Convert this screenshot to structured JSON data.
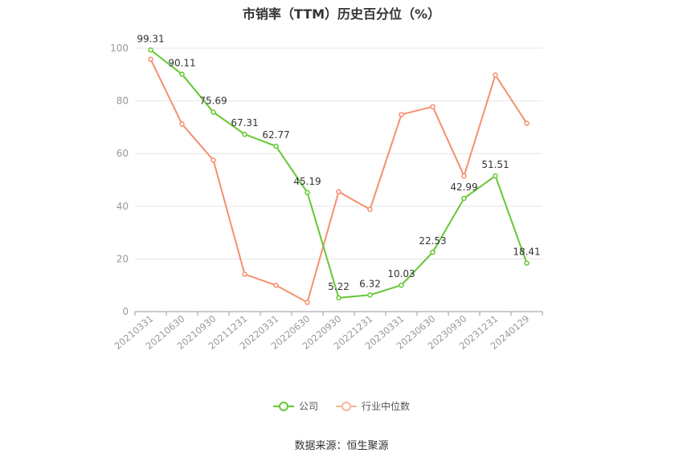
{
  "chart_data": {
    "type": "line",
    "title": "市销率（TTM）历史百分位（%）",
    "categories": [
      "20210331",
      "20210630",
      "20210930",
      "20211231",
      "20220331",
      "20220630",
      "20220930",
      "20221231",
      "20230331",
      "20230630",
      "20230930",
      "20231231",
      "20240129"
    ],
    "series": [
      {
        "name": "公司",
        "color": "#64c832",
        "values": [
          99.31,
          90.11,
          75.69,
          67.31,
          62.77,
          45.19,
          5.22,
          6.32,
          10.03,
          22.53,
          42.99,
          51.51,
          18.41
        ],
        "labels": [
          "99.31",
          "90.11",
          "75.69",
          "67.31",
          "62.77",
          "45.19",
          "5.22",
          "6.32",
          "10.03",
          "22.53",
          "42.99",
          "51.51",
          "18.41"
        ]
      },
      {
        "name": "行业中位数",
        "color": "#f5906e",
        "values": [
          95.8,
          71.2,
          57.5,
          14.2,
          10.0,
          3.5,
          45.5,
          38.8,
          74.8,
          77.8,
          51.5,
          89.8,
          71.5
        ]
      }
    ],
    "ylim": [
      0,
      100
    ],
    "yticks": [
      "0",
      "20",
      "40",
      "60",
      "80",
      "100"
    ],
    "grid": true,
    "legend_position": "bottom"
  },
  "source": "数据来源：恒生聚源"
}
